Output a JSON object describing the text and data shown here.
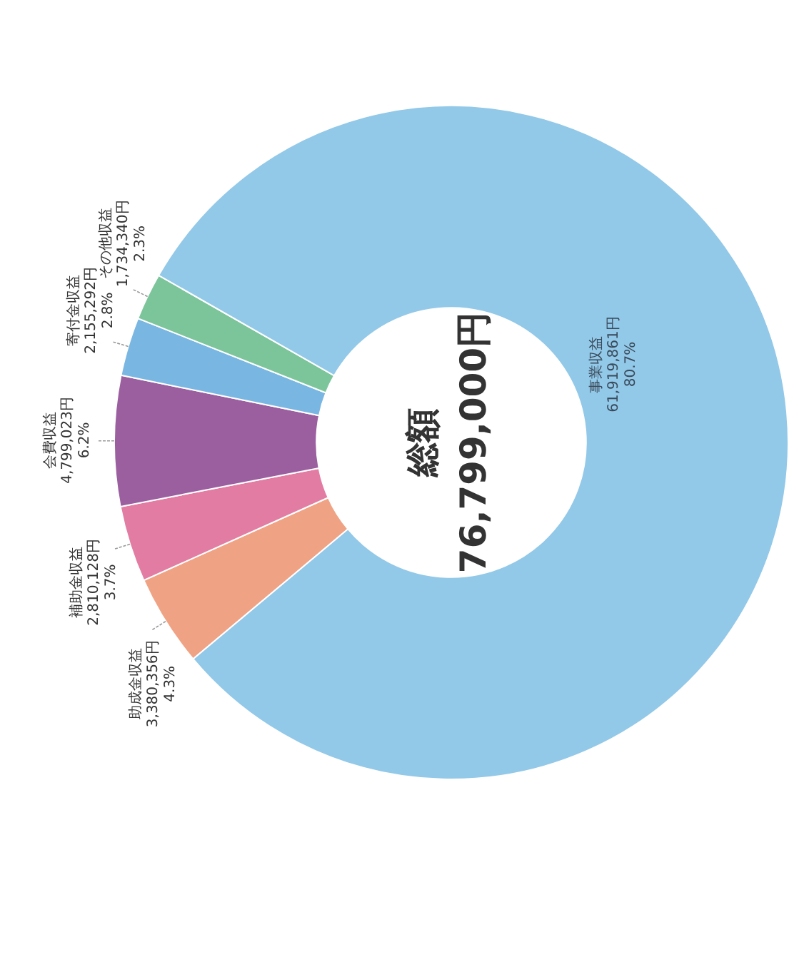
{
  "chart_data": {
    "type": "donut",
    "categories": [
      "助成金収益",
      "補助金収益",
      "会費収益",
      "寄付金収益",
      "その他収益",
      "事業収益"
    ],
    "values": [
      3380356,
      2810128,
      4799023,
      2155292,
      1734340,
      61919861
    ],
    "colors": [
      "#f0a384",
      "#e27ca2",
      "#9b5fa0",
      "#79b7e2",
      "#7cc59b",
      "#92c8e8"
    ],
    "value_labels": [
      "3,380,356円 4.3%",
      "2,810,128円 3.7%",
      "4,799,023円 6.2%",
      "2,155,292円 2.8%",
      "1,734,340円 2.3%",
      "61,919,861円 80.7%"
    ],
    "annotations": [
      "総額",
      "76,799,000円"
    ]
  }
}
